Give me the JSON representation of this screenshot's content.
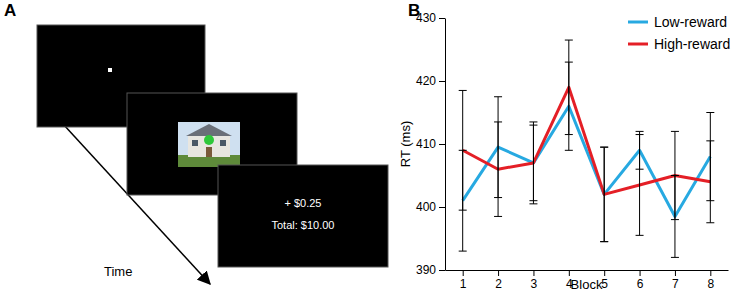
{
  "panel_a": {
    "label": "A",
    "feedback_lines": [
      "+ $0.25",
      "Total: $10.00"
    ],
    "time_label": "Time"
  },
  "chart_data": {
    "type": "line",
    "title": "B",
    "x_label": "Block",
    "y_label": "RT (ms)",
    "x": [
      1,
      2,
      3,
      4,
      5,
      6,
      7,
      8
    ],
    "xlim": [
      0.5,
      8.5
    ],
    "xticks": [
      1,
      2,
      3,
      4,
      5,
      6,
      7,
      8
    ],
    "ylim": [
      390,
      430
    ],
    "yticks": [
      390,
      400,
      410,
      420,
      430
    ],
    "legend": "top-right",
    "series": [
      {
        "name": "Low-reward",
        "color": "#27a9e1",
        "values": [
          401,
          409.5,
          407,
          416,
          402,
          409,
          398.5,
          408
        ],
        "errors": [
          8,
          8,
          6.5,
          7,
          7.5,
          3,
          6.5,
          7
        ]
      },
      {
        "name": "High-reward",
        "color": "#e41f26",
        "values": [
          409,
          406,
          407,
          419,
          402,
          403.5,
          405,
          404
        ],
        "errors": [
          9.5,
          7.5,
          6,
          7.5,
          7.5,
          8,
          7,
          6.5
        ]
      }
    ]
  }
}
